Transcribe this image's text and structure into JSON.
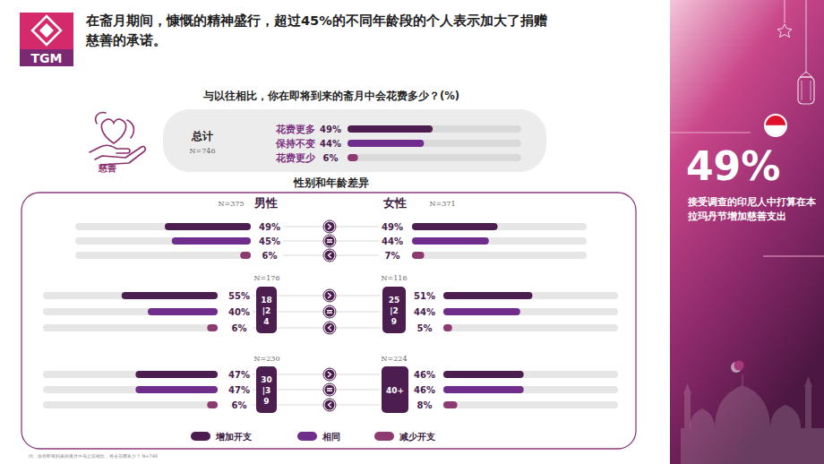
{
  "header": {
    "logo": "TGM",
    "title": "在斋月期间，慷慨的精神盛行，超过45%的不同年龄段的个人表示加大了捐赠慈善的承诺。"
  },
  "chart_data": [
    {
      "type": "bar",
      "orientation": "horizontal",
      "title": "与以往相比，你在即将到来的斋月中会花费多少？(%)",
      "subtitle": "总计",
      "sample": "N=746",
      "icon_label": "慈善",
      "categories": [
        "花费更多",
        "保持不变",
        "花费更少"
      ],
      "values": [
        49,
        44,
        6
      ],
      "value_labels": [
        "49%",
        "44%",
        "6%"
      ],
      "colors": [
        "#4c1d4f",
        "#6f2d8c",
        "#8c3a6f"
      ],
      "xlim": [
        0,
        100
      ],
      "tick_labels": false,
      "data_labels": true
    },
    {
      "type": "bar",
      "orientation": "horizontal",
      "title": "性别和年龄差异",
      "categories": [
        "增加开支",
        "相同",
        "减少开支"
      ],
      "colors": [
        "#4c1d4f",
        "#6f2d8c",
        "#8c3a6f"
      ],
      "legend": "bottom",
      "xlim": [
        0,
        100
      ],
      "tick_labels": false,
      "data_labels": true,
      "series": [
        {
          "name": "男性",
          "sample": "N=375",
          "values": [
            49,
            45,
            6
          ],
          "value_labels": [
            "49%",
            "45%",
            "6%"
          ]
        },
        {
          "name": "女性",
          "sample": "N=371",
          "values": [
            49,
            44,
            7
          ],
          "value_labels": [
            "49%",
            "44%",
            "7%"
          ]
        },
        {
          "name": "18|24",
          "sample": "N=176",
          "values": [
            55,
            40,
            6
          ],
          "value_labels": [
            "55%",
            "40%",
            "6%"
          ]
        },
        {
          "name": "25|29",
          "sample": "N=116",
          "values": [
            51,
            44,
            5
          ],
          "value_labels": [
            "51%",
            "44%",
            "5%"
          ]
        },
        {
          "name": "30|39",
          "sample": "N=230",
          "values": [
            47,
            47,
            6
          ],
          "value_labels": [
            "47%",
            "47%",
            "6%"
          ]
        },
        {
          "name": "40+",
          "sample": "N=224",
          "values": [
            46,
            46,
            8
          ],
          "value_labels": [
            "46%",
            "46%",
            "8%"
          ]
        }
      ]
    }
  ],
  "footnote": "问：你在即将到来的斋月中与之前相比，将会花费多少？ N=746",
  "side_panel": {
    "highlight": "49%",
    "text": "接受调查的印尼人中打算在本拉玛丹节增加慈善支出"
  }
}
